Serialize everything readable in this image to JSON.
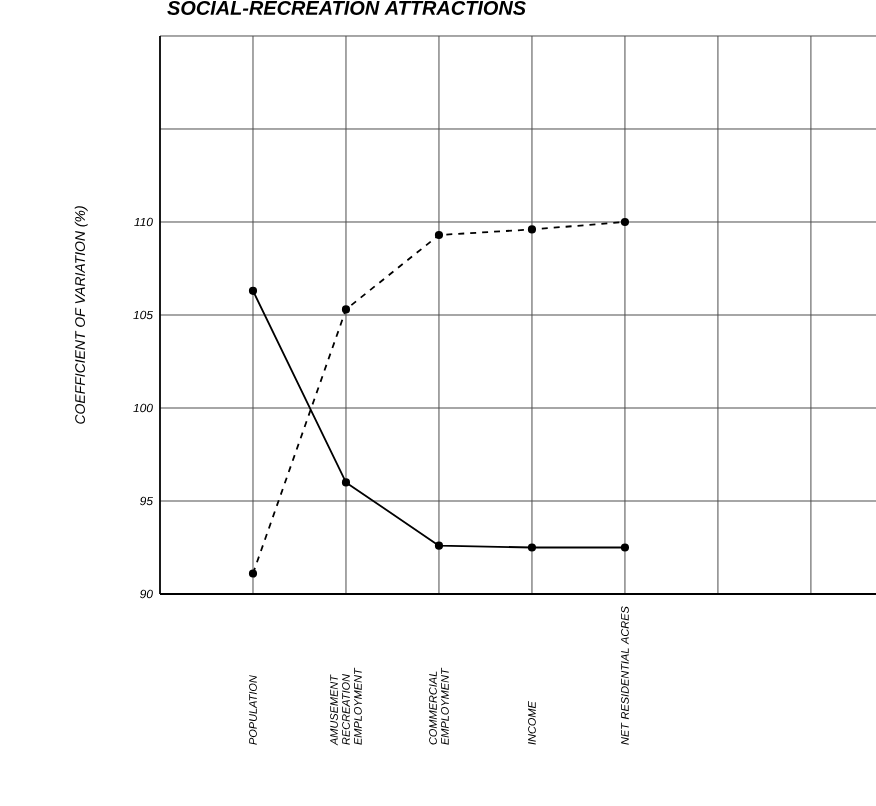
{
  "chart_data": {
    "type": "line",
    "title": "SOCIAL-RECREATION ATTRACTIONS",
    "ylabel": "COEFFICIENT OF VARIATION (%)",
    "categories": [
      "POPULATION",
      "AMUSEMENT RECREATION EMPLOYMENT",
      "COMMERCIAL EMPLOYMENT",
      "INCOME",
      "NET RESIDENTIAL ACRES",
      null,
      null
    ],
    "ylim": [
      90,
      120
    ],
    "yticks": [
      90,
      95,
      100,
      105,
      110,
      {
        "value": 115,
        "label": null
      },
      {
        "value": 120,
        "label": null
      }
    ],
    "grid": true,
    "marker": "circle",
    "series": [
      {
        "color": "#000000",
        "line_style": "solid",
        "values": [
          106.3,
          96,
          92.6,
          92.5,
          92.5,
          null,
          null
        ]
      },
      {
        "color": "#000000",
        "line_style": "dashed",
        "values": [
          91.1,
          105.3,
          109.3,
          109.6,
          110,
          null,
          null
        ]
      }
    ]
  }
}
